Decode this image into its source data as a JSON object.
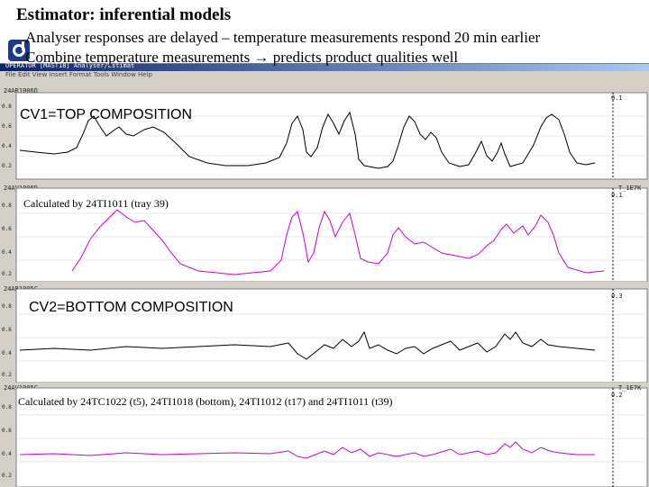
{
  "slide": {
    "title": "Estimator: inferential models",
    "bullets": [
      "Analyser responses are delayed – temperature measurements respond 20 min earlier",
      "Combine temperature measurements",
      "predicts product qualities well"
    ]
  },
  "app": {
    "window_title": "OPERATOR [MAST18]   Analyser/Estimat",
    "menu": "File  Edit  View  Insert  Format  Tools  Window  Help"
  },
  "panels": [
    {
      "tag": "24AR1006D",
      "scale_right": "0.1",
      "overlay_label": "CV1=TOP COMPOSITION",
      "overlay_type": "cv",
      "color": "#000000",
      "y_ticks": [
        "0.8",
        "0.6",
        "0.4",
        "0.2"
      ]
    },
    {
      "tag": "24AV1006D",
      "scale_right": "0.1",
      "right_marker": "T_1E7K",
      "overlay_label": "Calculated by 24TI1011 (tray 39)",
      "overlay_type": "calc",
      "color": "#cc00cc",
      "y_ticks": [
        "0.8",
        "0.6",
        "0.4",
        "0.2"
      ]
    },
    {
      "tag": "24AR1005C",
      "scale_right": "0.3",
      "overlay_label": "CV2=BOTTOM COMPOSITION",
      "overlay_type": "cv",
      "color": "#000000",
      "y_ticks": [
        "0.8",
        "0.6",
        "0.4",
        "0.2"
      ]
    },
    {
      "tag": "24AV1005C",
      "scale_right": "0.2",
      "right_marker": "T_1E7K",
      "overlay_label": "Calculated by 24TC1022 (t5), 24TI1018 (bottom), 24TI1012 (t17) and 24TI1011 (t39)",
      "overlay_type": "calc",
      "color": "#cc00cc",
      "y_ticks": [
        "0.8",
        "0.6",
        "0.4",
        "0.2"
      ]
    }
  ],
  "colors": {
    "trend_black": "#000000",
    "trend_magenta": "#cc00cc",
    "titlebar": "#0a246a",
    "chrome": "#d4d0c8"
  }
}
